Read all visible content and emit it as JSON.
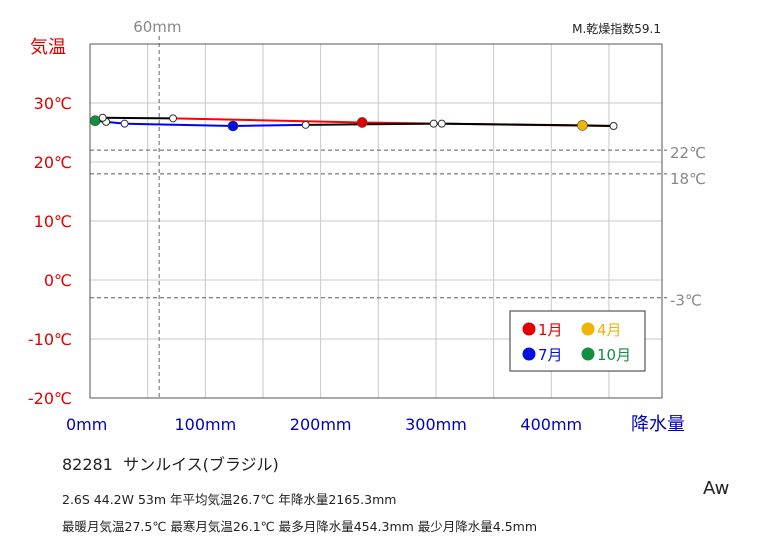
{
  "chart_data": {
    "type": "line",
    "title": "",
    "ylabel": "気温",
    "xlabel": "降水量",
    "index_label": "M.乾燥指数59.1",
    "y_ticks": [
      {
        "v": 30,
        "label": "30℃"
      },
      {
        "v": 20,
        "label": "20℃"
      },
      {
        "v": 10,
        "label": "10℃"
      },
      {
        "v": 0,
        "label": "0℃"
      },
      {
        "v": -10,
        "label": "-10℃"
      },
      {
        "v": -20,
        "label": "-20℃"
      }
    ],
    "x_ticks": [
      {
        "v": 0,
        "label": "0mm"
      },
      {
        "v": 100,
        "label": "100mm"
      },
      {
        "v": 200,
        "label": "200mm"
      },
      {
        "v": 300,
        "label": "300mm"
      },
      {
        "v": 400,
        "label": "400mm"
      }
    ],
    "xlim": [
      0,
      500
    ],
    "ylim": [
      -20,
      40
    ],
    "grid": true,
    "ref_lines_temp": [
      {
        "v": 22,
        "label": "22℃"
      },
      {
        "v": 18,
        "label": "18℃"
      },
      {
        "v": -3,
        "label": "-3℃"
      }
    ],
    "ref_line_precip": {
      "v": 60,
      "label": "60mm"
    },
    "months": [
      {
        "m": 1,
        "p": 236,
        "t": 26.7
      },
      {
        "m": 2,
        "p": 298,
        "t": 26.5
      },
      {
        "m": 3,
        "p": 454,
        "t": 26.1
      },
      {
        "m": 4,
        "p": 427,
        "t": 26.2
      },
      {
        "m": 5,
        "p": 305,
        "t": 26.5
      },
      {
        "m": 6,
        "p": 187,
        "t": 26.3
      },
      {
        "m": 7,
        "p": 124,
        "t": 26.1
      },
      {
        "m": 8,
        "p": 30,
        "t": 26.5
      },
      {
        "m": 9,
        "p": 14,
        "t": 26.8
      },
      {
        "m": 10,
        "p": 4.5,
        "t": 27.0
      },
      {
        "m": 11,
        "p": 11,
        "t": 27.5
      },
      {
        "m": 12,
        "p": 72,
        "t": 27.4
      }
    ],
    "highlighted": [
      {
        "m": 1,
        "label": "1月",
        "color": "#e00000"
      },
      {
        "m": 4,
        "label": "4月",
        "color": "#f0b400"
      },
      {
        "m": 7,
        "label": "7月",
        "color": "#0010e0"
      },
      {
        "m": 10,
        "label": "10月",
        "color": "#109040"
      }
    ],
    "segment_colors": {
      "red": "#ff0000",
      "blue": "#0000ff",
      "black": "#000000"
    },
    "legend_position": "bottom-right inside plot"
  },
  "station": {
    "code": "82281",
    "name": "サンルイス(ブラジル)"
  },
  "stats": {
    "line1": "2.6S 44.2W 53m 年平均気温26.7℃ 年降水量2165.3mm",
    "line2": "最暖月気温27.5℃ 最寒月気温26.1℃ 最多月降水量454.3mm 最少月降水量4.5mm"
  },
  "climate_class": "Aw",
  "colors": {
    "temp_axis": "#e00000",
    "precip_axis": "#0000c0",
    "ref": "#888888",
    "grid": "#c8c8c8"
  }
}
